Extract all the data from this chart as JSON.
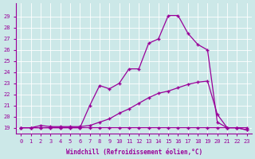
{
  "x": [
    0,
    1,
    2,
    3,
    4,
    5,
    6,
    7,
    8,
    9,
    10,
    11,
    12,
    13,
    14,
    15,
    16,
    17,
    18,
    19,
    20,
    21,
    22,
    23
  ],
  "line1": [
    19.0,
    19.0,
    19.0,
    19.0,
    19.0,
    19.0,
    19.0,
    19.0,
    19.0,
    19.0,
    19.0,
    19.0,
    19.0,
    19.0,
    19.0,
    19.0,
    19.0,
    19.0,
    19.0,
    19.0,
    19.0,
    19.0,
    19.0,
    18.8
  ],
  "line2": [
    19.0,
    19.0,
    19.2,
    19.1,
    19.1,
    19.1,
    19.1,
    19.2,
    19.5,
    19.8,
    20.3,
    20.7,
    21.2,
    21.7,
    22.1,
    22.3,
    22.6,
    22.9,
    23.1,
    23.2,
    20.2,
    19.0,
    19.0,
    19.0
  ],
  "line3": [
    19.0,
    19.0,
    19.0,
    19.0,
    19.0,
    19.0,
    19.0,
    21.0,
    22.8,
    22.5,
    23.0,
    24.3,
    24.3,
    26.6,
    27.0,
    29.1,
    29.1,
    27.5,
    26.5,
    26.0,
    19.5,
    19.0,
    19.0,
    18.8
  ],
  "ylim_min": 18.5,
  "ylim_max": 30.2,
  "xlim_min": -0.5,
  "xlim_max": 23.5,
  "yticks": [
    19,
    20,
    21,
    22,
    23,
    24,
    25,
    26,
    27,
    28,
    29
  ],
  "xticks": [
    0,
    1,
    2,
    3,
    4,
    5,
    6,
    7,
    8,
    9,
    10,
    11,
    12,
    13,
    14,
    15,
    16,
    17,
    18,
    19,
    20,
    21,
    22,
    23
  ],
  "xlabel": "Windchill (Refroidissement éolien,°C)",
  "line_color": "#990099",
  "bg_color": "#cce8e8",
  "grid_color": "#ffffff",
  "tick_color": "#990099",
  "label_color": "#990099",
  "marker": "+",
  "markersize": 3.5,
  "linewidth": 0.9,
  "tick_fontsize": 5.0,
  "xlabel_fontsize": 5.5
}
